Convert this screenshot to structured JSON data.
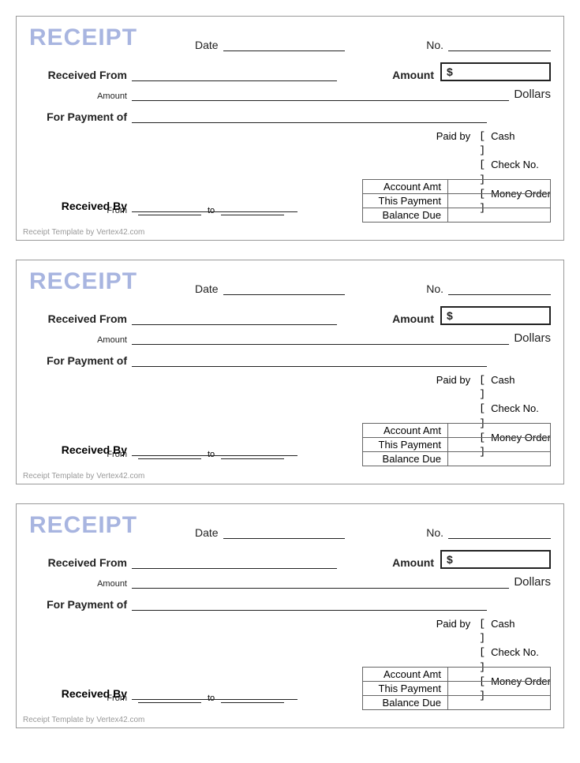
{
  "receipt": {
    "title": "RECEIPT",
    "date_label": "Date",
    "no_label": "No.",
    "received_from_label": "Received From",
    "amount_label": "Amount",
    "amount_box_prefix": "$",
    "amount_small_label": "Amount",
    "dollars_text": "Dollars",
    "for_payment_label": "For Payment of",
    "from_label": "From",
    "to_label": "to",
    "paid_by_label": "Paid by",
    "checkbox_glyph": "[  ]",
    "pay_methods": [
      "Cash",
      "Check No.",
      "Money Order"
    ],
    "received_by_label": "Received By",
    "summary": [
      "Account Amt",
      "This Payment",
      "Balance Due"
    ],
    "footer": "Receipt Template by Vertex42.com"
  },
  "colors": {
    "title_color": "#a8b5e0",
    "border_color": "#999999",
    "line_color": "#222222",
    "footer_color": "#999999",
    "background": "#ffffff"
  },
  "copies": 3
}
